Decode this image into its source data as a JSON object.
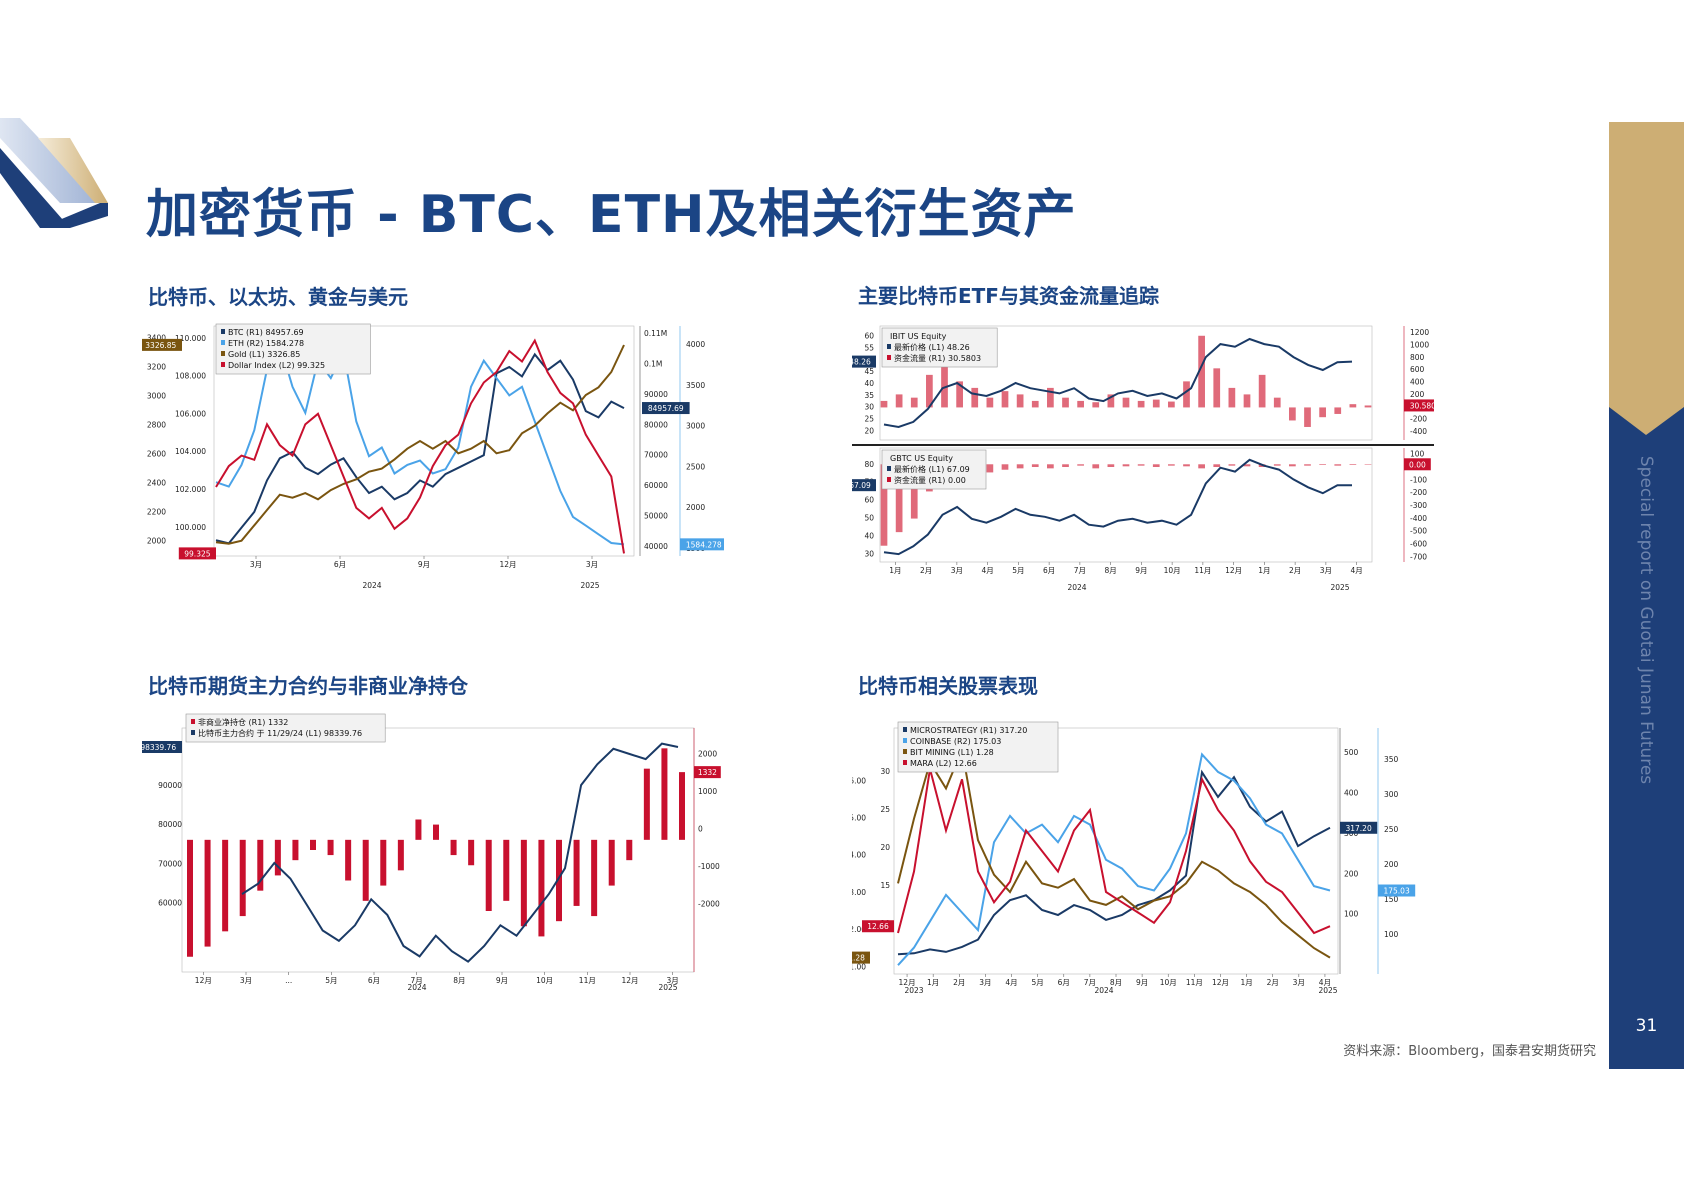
{
  "page": {
    "title": "加密货币 - BTC、ETH及相关衍生资产",
    "sidebar_text": "Special report on Guotai Junan Futures",
    "page_number": "31",
    "source": "资料来源：Bloomberg，国泰君安期货研究"
  },
  "colors": {
    "navy": "#1b4585",
    "gold": "#cdae74",
    "red": "#c8102e",
    "brown": "#7a5510",
    "blue": "#4aa3e8",
    "darknavy": "#1a3a66"
  },
  "chart_data": [
    {
      "id": "c1",
      "section_title": "比特币、以太坊、黄金与美元",
      "type": "line",
      "x_ticks": [
        "3月",
        "6月",
        "9月",
        "12月",
        "3月"
      ],
      "year_labels": [
        "2024",
        "2025"
      ],
      "legend": [
        "BTC (R1)    84957.69",
        "ETH (R2)    1584.278",
        "Gold (L1)    3326.85",
        "Dollar Index (L2) 99.325"
      ],
      "axes": {
        "L1": {
          "ticks": [
            "3400",
            "3200",
            "3000",
            "2800",
            "2600",
            "2400",
            "2200",
            "2000"
          ],
          "range": [
            1950,
            3450
          ]
        },
        "L2": {
          "ticks": [
            "110.000",
            "108.000",
            "106.000",
            "104.000",
            "102.000",
            "100.000"
          ],
          "range": [
            99.2,
            110.2
          ]
        },
        "R1": {
          "ticks": [
            "0.11M",
            "0.1M",
            "90000",
            "80000",
            "70000",
            "60000",
            "50000",
            "40000"
          ],
          "range": [
            38000,
            111000
          ]
        },
        "R2": {
          "ticks": [
            "4000",
            "3500",
            "3000",
            "2500",
            "2000",
            "1500"
          ],
          "range": [
            1450,
            4100
          ]
        }
      },
      "last_labels": [
        {
          "text": "3326.85",
          "color": "#7a5510",
          "axis": "L1",
          "value": 3326.85
        },
        {
          "text": "99.325",
          "color": "#c8102e",
          "axis": "L2",
          "value": 99.325
        },
        {
          "text": "84957.69",
          "color": "#1a3a66",
          "axis": "R1",
          "value": 84957.69
        },
        {
          "text": "1584.278",
          "color": "#4aa3e8",
          "axis": "R2",
          "value": 1584.278
        }
      ],
      "series": [
        {
          "name": "BTC (R1)",
          "axis": "R1",
          "color": "#1a3a66",
          "values": [
            43000,
            42000,
            47000,
            52000,
            62000,
            69000,
            71000,
            66000,
            64000,
            67000,
            69000,
            63000,
            58000,
            60000,
            56000,
            58000,
            62000,
            60000,
            64000,
            66000,
            68000,
            70000,
            96000,
            98000,
            95000,
            102000,
            97000,
            100000,
            94000,
            84000,
            82000,
            87000,
            84957
          ]
        },
        {
          "name": "ETH (R2)",
          "axis": "R2",
          "color": "#4aa3e8",
          "values": [
            2300,
            2250,
            2500,
            2900,
            3600,
            3900,
            3400,
            3100,
            3700,
            3500,
            3800,
            3000,
            2600,
            2700,
            2400,
            2500,
            2550,
            2400,
            2450,
            2700,
            3400,
            3700,
            3500,
            3300,
            3400,
            3000,
            2600,
            2200,
            1900,
            1800,
            1700,
            1600,
            1584
          ]
        },
        {
          "name": "Gold (L1)",
          "axis": "L1",
          "color": "#7a5510",
          "values": [
            2040,
            2030,
            2050,
            2150,
            2250,
            2350,
            2330,
            2360,
            2320,
            2380,
            2420,
            2450,
            2500,
            2520,
            2580,
            2650,
            2700,
            2650,
            2700,
            2620,
            2650,
            2700,
            2620,
            2640,
            2750,
            2800,
            2880,
            2950,
            2900,
            3000,
            3050,
            3150,
            3326
          ]
        },
        {
          "name": "Dollar Index (L2)",
          "axis": "L2",
          "color": "#c8102e",
          "values": [
            102.5,
            103.5,
            104.0,
            103.8,
            105.5,
            104.5,
            104.0,
            105.5,
            106.0,
            104.5,
            103.0,
            101.5,
            101.0,
            101.5,
            100.5,
            101.0,
            102.0,
            103.5,
            104.5,
            105.0,
            106.5,
            107.5,
            108.0,
            109.0,
            108.5,
            109.5,
            108.0,
            107.0,
            106.5,
            105.0,
            104.0,
            103.0,
            99.325
          ]
        }
      ]
    },
    {
      "id": "c2",
      "section_title": "主要比特币ETF与其资金流量追踪",
      "type": "line+bar",
      "x_ticks": [
        "1月",
        "2月",
        "3月",
        "4月",
        "5月",
        "6月",
        "7月",
        "8月",
        "9月",
        "10月",
        "11月",
        "12月",
        "1月",
        "2月",
        "3月",
        "4月"
      ],
      "year_labels": [
        "2024",
        "2025"
      ],
      "panels": [
        {
          "legend_title": "IBIT US Equity",
          "legend": [
            "最新价格 (L1) 48.26",
            "资金流量 (R1) 30.5803"
          ],
          "left_ticks": [
            "60",
            "55",
            "50",
            "45",
            "40",
            "35",
            "30",
            "25",
            "20"
          ],
          "left_range": [
            18,
            62
          ],
          "right_ticks": [
            "1200",
            "1000",
            "800",
            "600",
            "400",
            "200",
            "0",
            "-200",
            "-400"
          ],
          "right_range": [
            -500,
            1250
          ],
          "last_labels": [
            {
              "text": "48.26",
              "color": "#1a3a66",
              "axis": "L",
              "value": 48.26
            },
            {
              "text": "30.5803",
              "color": "#c8102e",
              "axis": "R",
              "value": 30.5803
            }
          ],
          "price": [
            24,
            23,
            25,
            30,
            38,
            40,
            36,
            35,
            37,
            40,
            38,
            37,
            36,
            38,
            34,
            33,
            36,
            37,
            35,
            36,
            34,
            38,
            50,
            55,
            54,
            57,
            55,
            54,
            50,
            47,
            45,
            48,
            48.26
          ],
          "flows": [
            100,
            200,
            150,
            500,
            800,
            400,
            300,
            150,
            250,
            200,
            100,
            300,
            150,
            100,
            80,
            200,
            150,
            100,
            120,
            90,
            400,
            1100,
            600,
            300,
            200,
            500,
            150,
            -200,
            -300,
            -150,
            -100,
            50,
            30
          ]
        },
        {
          "legend_title": "GBTC US Equity",
          "legend": [
            "最新价格 (L1) 67.09",
            "资金流量 (R1) 0.00"
          ],
          "left_ticks": [
            "80",
            "70",
            "60",
            "50",
            "40",
            "30"
          ],
          "left_range": [
            28,
            86
          ],
          "right_ticks": [
            "100",
            "0",
            "-100",
            "-200",
            "-300",
            "-400",
            "-500",
            "-600",
            "-700"
          ],
          "right_range": [
            -720,
            120
          ],
          "last_labels": [
            {
              "text": "67.09",
              "color": "#1a3a66",
              "axis": "L",
              "value": 67.09
            },
            {
              "text": "0.00",
              "color": "#c8102e",
              "axis": "R",
              "value": 0.0
            }
          ],
          "price": [
            33,
            32,
            36,
            42,
            52,
            56,
            50,
            48,
            51,
            55,
            52,
            51,
            49,
            52,
            47,
            46,
            49,
            50,
            48,
            49,
            47,
            52,
            68,
            76,
            74,
            80,
            77,
            75,
            70,
            66,
            63,
            67,
            67.09
          ],
          "flows": [
            -600,
            -500,
            -400,
            -200,
            -150,
            -100,
            -80,
            -60,
            -40,
            -30,
            -20,
            -30,
            -20,
            -10,
            -30,
            -20,
            -15,
            -10,
            -20,
            -10,
            -15,
            -30,
            -20,
            -10,
            -15,
            -20,
            -10,
            -15,
            -10,
            -5,
            -10,
            -5,
            0
          ]
        }
      ]
    },
    {
      "id": "c3",
      "section_title": "比特币期货主力合约与非商业净持仓",
      "type": "line+bar",
      "x_ticks": [
        "12月",
        "3月",
        "...",
        "5月",
        "6月",
        "7月",
        "8月",
        "9月",
        "10月",
        "11月",
        "12月",
        "3月"
      ],
      "year_labels": [
        "2024",
        "2025"
      ],
      "legend": [
        "非商业净持仓 (R1)          1332",
        "比特币主力合约 于 11/29/24 (L1) 98339.76"
      ],
      "left_ticks": [
        "0.1M",
        "90000",
        "80000",
        "70000",
        "60000"
      ],
      "left_range": [
        55000,
        102000
      ],
      "right_ticks": [
        "2000",
        "1000",
        "0",
        "-1000",
        "-2000"
      ],
      "right_range": [
        -2600,
        2200
      ],
      "last_labels": [
        {
          "text": "98339.76",
          "color": "#1a3a66",
          "axis": "L",
          "value": 98339.76
        },
        {
          "text": "1332",
          "color": "#c8102e",
          "axis": "R",
          "value": 1332
        }
      ],
      "price": [
        70000,
        72000,
        76000,
        73000,
        68000,
        63000,
        61000,
        64000,
        69000,
        66000,
        60000,
        58000,
        62000,
        59000,
        57000,
        60000,
        64000,
        62000,
        66000,
        70000,
        75000,
        91000,
        95000,
        98000,
        97000,
        96000,
        99000,
        98339
      ],
      "positions": [
        -2300,
        -2100,
        -1800,
        -1500,
        -1000,
        -700,
        -400,
        -200,
        -300,
        -800,
        -1200,
        -900,
        -600,
        400,
        300,
        -300,
        -500,
        -1400,
        -1200,
        -1700,
        -1900,
        -1600,
        -1300,
        -1500,
        -900,
        -400,
        1400,
        1800,
        1332
      ]
    },
    {
      "id": "c4",
      "section_title": "比特币相关股票表现",
      "type": "line",
      "x_ticks": [
        "12月",
        "1月",
        "2月",
        "3月",
        "4月",
        "5月",
        "6月",
        "7月",
        "8月",
        "9月",
        "10月",
        "11月",
        "12月",
        "1月",
        "2月",
        "3月",
        "4月"
      ],
      "year_labels": [
        "2023",
        "2024",
        "2025"
      ],
      "legend": [
        "MICROSTRATEGY (R1) 317.20",
        "COINBASE (R2)      175.03",
        "BIT MINING (L1)     1.28",
        "MARA (L2)          12.66"
      ],
      "axes": {
        "L1": {
          "ticks": [
            "6.00",
            "5.00",
            "4.00",
            "3.00",
            "2.00",
            "1.00"
          ],
          "range": [
            0.9,
            6.6
          ]
        },
        "L2": {
          "ticks": [
            "30",
            "25",
            "20",
            "15",
            "10"
          ],
          "range": [
            8,
            32
          ]
        },
        "R1": {
          "ticks": [
            "500",
            "400",
            "300",
            "200",
            "100"
          ],
          "range": [
            20,
            520
          ]
        },
        "R2": {
          "ticks": [
            "350",
            "300",
            "250",
            "200",
            "150",
            "100"
          ],
          "range": [
            80,
            360
          ]
        }
      },
      "last_labels": [
        {
          "text": "12.66",
          "color": "#c8102e",
          "axis": "L2",
          "value": 12.66
        },
        {
          "text": "1.28",
          "color": "#7a5510",
          "axis": "L1",
          "value": 1.28
        },
        {
          "text": "317.20",
          "color": "#1a3a66",
          "axis": "R1",
          "value": 317.2
        },
        {
          "text": "175.03",
          "color": "#4aa3e8",
          "axis": "R2",
          "value": 175.03
        }
      ],
      "series": [
        {
          "name": "MICROSTRATEGY (R1)",
          "axis": "R1",
          "color": "#1a3a66",
          "values": [
            60,
            62,
            70,
            65,
            75,
            90,
            140,
            170,
            180,
            150,
            140,
            160,
            150,
            130,
            140,
            160,
            170,
            190,
            220,
            430,
            380,
            420,
            360,
            330,
            350,
            280,
            300,
            317.2
          ]
        },
        {
          "name": "COINBASE (R2)",
          "axis": "R2",
          "color": "#4aa3e8",
          "values": [
            90,
            110,
            140,
            170,
            150,
            130,
            230,
            260,
            240,
            250,
            230,
            260,
            250,
            210,
            200,
            180,
            175,
            200,
            240,
            330,
            310,
            300,
            280,
            250,
            240,
            210,
            180,
            175.03
          ]
        },
        {
          "name": "BIT MINING (L1)",
          "axis": "L1",
          "color": "#7a5510",
          "values": [
            3.0,
            4.5,
            5.8,
            5.2,
            6.1,
            4.0,
            3.2,
            2.8,
            3.5,
            3.0,
            2.9,
            3.1,
            2.6,
            2.5,
            2.7,
            2.4,
            2.6,
            2.7,
            3.0,
            3.5,
            3.3,
            3.0,
            2.8,
            2.5,
            2.1,
            1.8,
            1.5,
            1.28
          ]
        },
        {
          "name": "MARA (L2)",
          "axis": "L2",
          "color": "#c8102e",
          "values": [
            12,
            18,
            28,
            22,
            27,
            18,
            15,
            17,
            22,
            20,
            18,
            22,
            24,
            16,
            15,
            14,
            13,
            15,
            20,
            27,
            24,
            22,
            19,
            17,
            16,
            14,
            12,
            12.66
          ]
        }
      ]
    }
  ]
}
